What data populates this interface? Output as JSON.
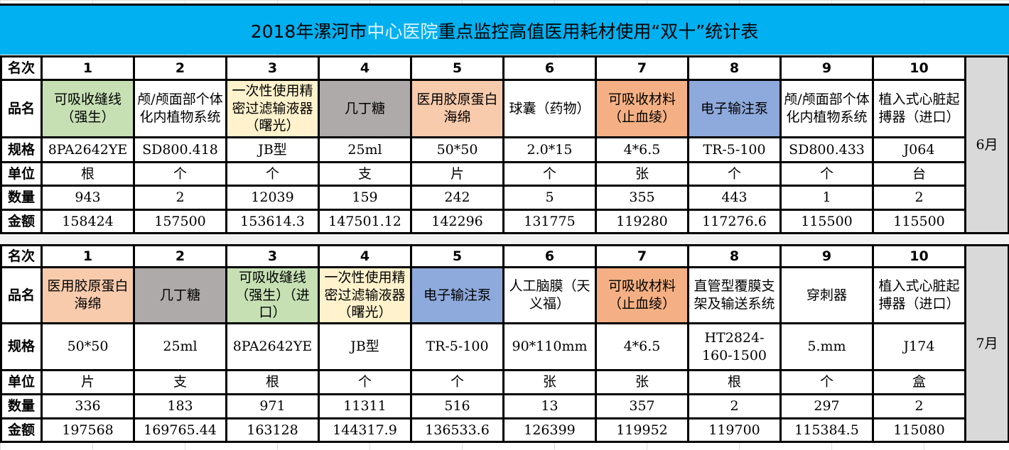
{
  "title": {
    "part1": "2018年漯河市",
    "highlight": "中心医院",
    "part2": "重点监控高值医用耗材使用“双十”统计表"
  },
  "row_labels": {
    "rank": "名次",
    "name": "品名",
    "spec": "规格",
    "unit": "单位",
    "qty": "数量",
    "amount": "金额"
  },
  "sections": [
    {
      "month": "6月",
      "items": [
        {
          "rank": "1",
          "name": "可吸收缝线（强生）",
          "fill": "#c6e0b4",
          "spec": "8PA2642YE",
          "unit": "根",
          "qty": "943",
          "amount": "158424"
        },
        {
          "rank": "2",
          "name": "颅/颅面部个体化内植物系统",
          "fill": "#ffffff",
          "spec": "SD800.418",
          "unit": "个",
          "qty": "2",
          "amount": "157500"
        },
        {
          "rank": "3",
          "name": "一次性使用精密过滤输液器（曙光）",
          "fill": "#fff2cc",
          "spec": "JB型",
          "unit": "个",
          "qty": "12039",
          "amount": "153614.3"
        },
        {
          "rank": "4",
          "name": "几丁糖",
          "fill": "#aeaaaa",
          "spec": "25ml",
          "unit": "支",
          "qty": "159",
          "amount": "147501.12"
        },
        {
          "rank": "5",
          "name": "医用胶原蛋白海绵",
          "fill": "#f8cbad",
          "spec": "50*50",
          "unit": "片",
          "qty": "242",
          "amount": "142296"
        },
        {
          "rank": "6",
          "name": "球囊（药物）",
          "fill": "#ffffff",
          "spec": "2.0*15",
          "unit": "个",
          "qty": "5",
          "amount": "131775"
        },
        {
          "rank": "7",
          "name": "可吸收材料（止血绫）",
          "fill": "#f4b084",
          "spec": "4*6.5",
          "unit": "张",
          "qty": "355",
          "amount": "119280"
        },
        {
          "rank": "8",
          "name": "电子输注泵",
          "fill": "#8ea9db",
          "spec": "TR-5-100",
          "unit": "个",
          "qty": "443",
          "amount": "117276.6"
        },
        {
          "rank": "9",
          "name": "颅/颅面部个体化内植物系统",
          "fill": "#ffffff",
          "spec": "SD800.433",
          "unit": "个",
          "qty": "1",
          "amount": "115500"
        },
        {
          "rank": "10",
          "name": "植入式心脏起搏器（进口）",
          "fill": "#ffffff",
          "spec": "J064",
          "unit": "台",
          "qty": "2",
          "amount": "115500"
        }
      ]
    },
    {
      "month": "7月",
      "items": [
        {
          "rank": "1",
          "name": "医用胶原蛋白海绵",
          "fill": "#f8cbad",
          "spec": "50*50",
          "unit": "片",
          "qty": "336",
          "amount": "197568"
        },
        {
          "rank": "2",
          "name": "几丁糖",
          "fill": "#aeaaaa",
          "spec": "25ml",
          "unit": "支",
          "qty": "183",
          "amount": "169765.44"
        },
        {
          "rank": "3",
          "name": "可吸收缝线（强生）（进口）",
          "fill": "#c6e0b4",
          "spec": "8PA2642YE",
          "unit": "根",
          "qty": "971",
          "amount": "163128"
        },
        {
          "rank": "4",
          "name": "一次性使用精密过滤输液器（曙光）",
          "fill": "#fff2cc",
          "spec": "JB型",
          "unit": "个",
          "qty": "11311",
          "amount": "144317.9"
        },
        {
          "rank": "5",
          "name": "电子输注泵",
          "fill": "#8ea9db",
          "spec": "TR-5-100",
          "unit": "个",
          "qty": "516",
          "amount": "136533.6"
        },
        {
          "rank": "6",
          "name": "人工脑膜（天义福）",
          "fill": "#ffffff",
          "spec": "90*110mm",
          "unit": "张",
          "qty": "13",
          "amount": "126399"
        },
        {
          "rank": "7",
          "name": "可吸收材料（止血绫）",
          "fill": "#f4b084",
          "spec": "4*6.5",
          "unit": "张",
          "qty": "357",
          "amount": "119952"
        },
        {
          "rank": "8",
          "name": "直管型覆膜支架及输送系统",
          "fill": "#ffffff",
          "spec": "HT2824-160-1500",
          "unit": "根",
          "qty": "2",
          "amount": "119700"
        },
        {
          "rank": "9",
          "name": "穿刺器",
          "fill": "#ffffff",
          "spec": "5.mm",
          "unit": "个",
          "qty": "297",
          "amount": "115384.5"
        },
        {
          "rank": "10",
          "name": "植入式心脏起搏器（进口）",
          "fill": "#ffffff",
          "spec": "J174",
          "unit": "盒",
          "qty": "2",
          "amount": "115080"
        }
      ]
    }
  ]
}
